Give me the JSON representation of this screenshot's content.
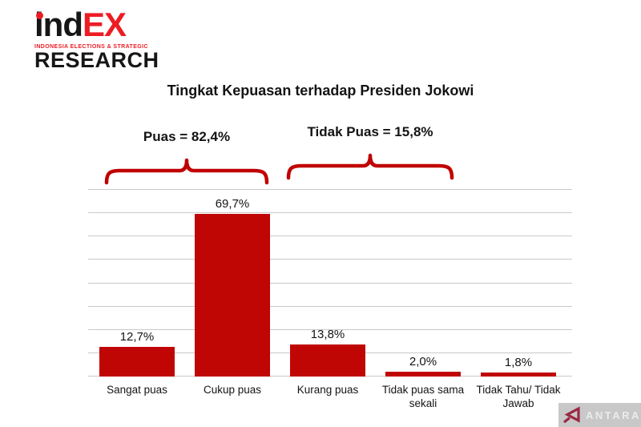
{
  "logo": {
    "word_black": "ind",
    "word_red": "EX",
    "tagline": "INDONESIA ELECTIONS & STRATEGIC",
    "line2": "RESEARCH"
  },
  "watermark": {
    "text": "ANTARA"
  },
  "colors": {
    "bar": "#c00505",
    "brace": "#c00000",
    "logo-red": "#ed1c24",
    "grid": "#c9c9c9",
    "wm-bg": "#c8c8c8",
    "wm-maroon": "#9c2742"
  },
  "chart_data": {
    "type": "bar",
    "title": "Tingkat Kepuasan terhadap Presiden Jokowi",
    "categories": [
      "Sangat puas",
      "Cukup puas",
      "Kurang puas",
      "Tidak puas sama sekali",
      "Tidak Tahu/ Tidak Jawab"
    ],
    "values": [
      12.7,
      69.7,
      13.8,
      2.0,
      1.8
    ],
    "value_labels": [
      "12,7%",
      "69,7%",
      "13,8%",
      "2,0%",
      "1,8%"
    ],
    "xlabel": "",
    "ylabel": "",
    "ylim": [
      0,
      80
    ],
    "gridline_step": 10,
    "grid": true,
    "legend": false,
    "annotations": [
      {
        "label": "Puas = 82,4%",
        "spans": [
          "Sangat puas",
          "Cukup puas"
        ]
      },
      {
        "label": "Tidak Puas = 15,8%",
        "spans": [
          "Kurang puas",
          "Tidak puas sama sekali"
        ]
      }
    ]
  }
}
